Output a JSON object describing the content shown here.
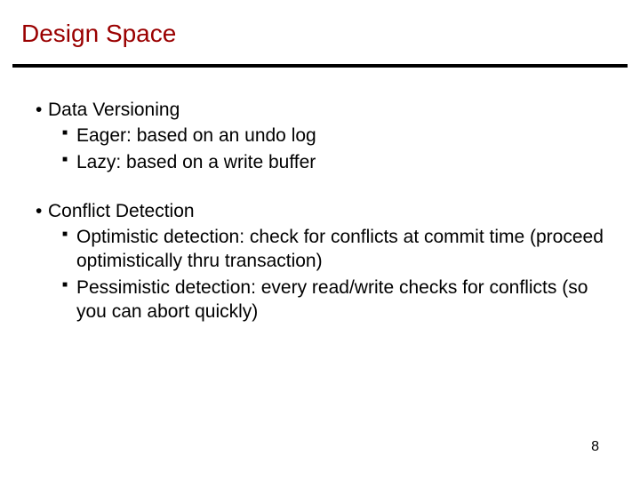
{
  "slide": {
    "title": "Design Space",
    "title_color": "#9a0000",
    "rule_color": "#000000",
    "background_color": "#ffffff",
    "text_color": "#000000",
    "title_fontsize": 28,
    "body_fontsize": 21,
    "bullets": [
      {
        "level": 1,
        "text": "Data Versioning"
      },
      {
        "level": 2,
        "text": "Eager: based on an undo log"
      },
      {
        "level": 2,
        "text": "Lazy: based on a write buffer"
      },
      {
        "level": 0,
        "text": ""
      },
      {
        "level": 1,
        "text": "Conflict Detection"
      },
      {
        "level": 2,
        "text": "Optimistic detection: check for conflicts at commit time (proceed optimistically thru transaction)"
      },
      {
        "level": 2,
        "text": "Pessimistic detection: every read/write checks for conflicts (so you can abort quickly)"
      }
    ],
    "page_number": "8"
  }
}
